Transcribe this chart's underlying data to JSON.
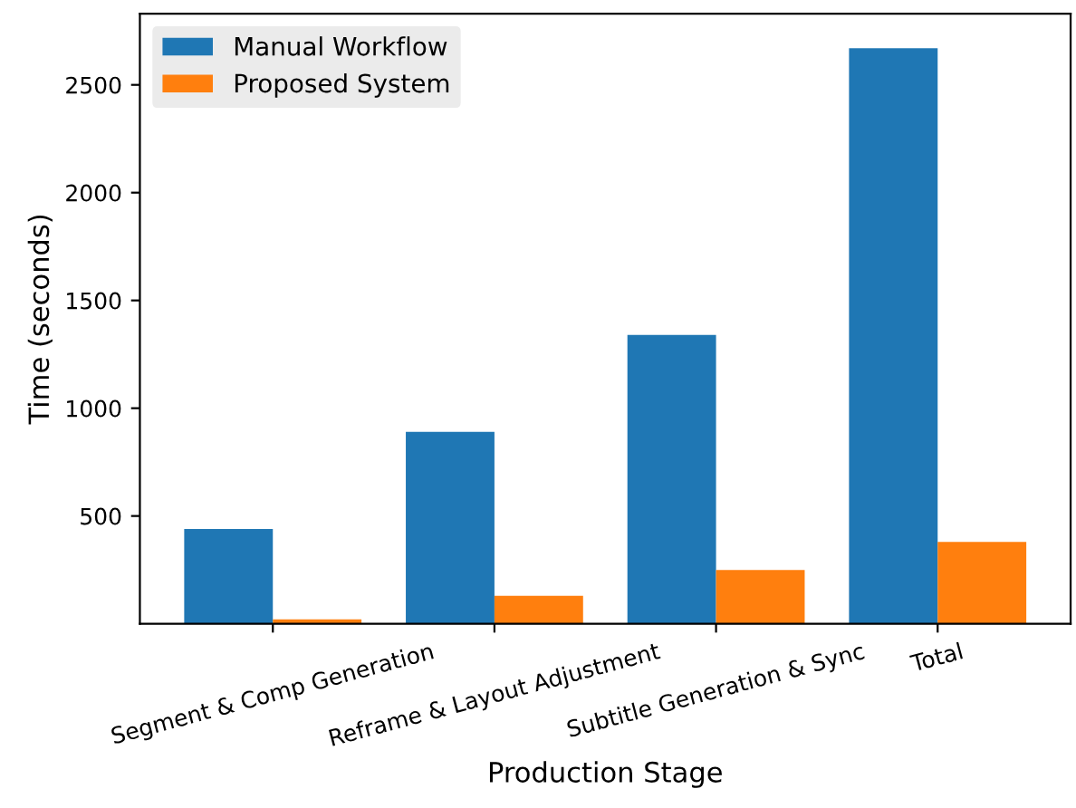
{
  "chart_data": {
    "type": "bar",
    "xlabel": "Production Stage",
    "ylabel": "Time (seconds)",
    "categories": [
      "Segment & Comp Generation",
      "Reframe & Layout Adjustment",
      "Subtitle Generation & Sync",
      "Total"
    ],
    "series": [
      {
        "name": "Manual Workflow",
        "color": "#1f77b4",
        "values": [
          440,
          890,
          1340,
          2670
        ]
      },
      {
        "name": "Proposed System",
        "color": "#ff7f0e",
        "values": [
          20,
          130,
          250,
          380
        ]
      }
    ],
    "ylim": [
      0,
      2830
    ],
    "yticks": [
      500,
      1000,
      1500,
      2000,
      2500
    ],
    "grid": false,
    "legend": "top left"
  }
}
